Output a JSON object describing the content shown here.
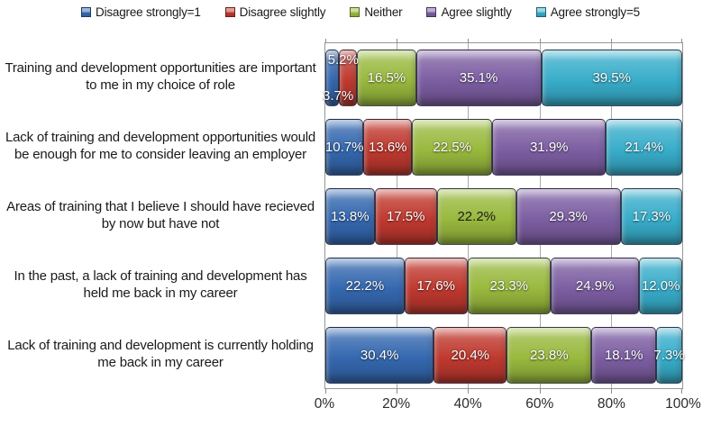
{
  "chart_data": {
    "type": "bar",
    "subtype": "horizontal-stacked",
    "title": "",
    "categories": [
      "Training and development opportunities are important to me in my choice of role",
      "Lack of training and development opportunities would be enough for me to consider leaving an employer",
      "Areas of training that I believe I should have recieved by now but have not",
      "In the past, a lack of training and development has held me back in my career",
      "Lack of training and development is currently holding me back in my career"
    ],
    "series": [
      {
        "name": "Disagree strongly=1",
        "color": "#3568AF",
        "values": [
          3.7,
          10.7,
          13.8,
          22.2,
          30.4
        ],
        "labels": [
          "3.7%",
          "10.7%",
          "13.8%",
          "22.2%",
          "30.4%"
        ]
      },
      {
        "name": "Disagree slightly",
        "color": "#BF392F",
        "values": [
          5.2,
          13.6,
          17.5,
          17.6,
          20.4
        ],
        "labels": [
          "5.2%",
          "13.6%",
          "17.5%",
          "17.6%",
          "20.4%"
        ]
      },
      {
        "name": "Neither",
        "color": "#99B93E",
        "values": [
          16.5,
          22.5,
          22.2,
          23.3,
          23.8
        ],
        "labels": [
          "16.5%",
          "22.5%",
          "22.2%",
          "23.3%",
          "23.8%"
        ]
      },
      {
        "name": "Agree slightly",
        "color": "#7C5EA2",
        "values": [
          35.1,
          31.9,
          29.3,
          24.9,
          18.1
        ],
        "labels": [
          "35.1%",
          "31.9%",
          "29.3%",
          "24.9%",
          "18.1%"
        ]
      },
      {
        "name": "Agree strongly=5",
        "color": "#38ADCA",
        "values": [
          39.5,
          21.4,
          17.3,
          12.0,
          7.3
        ],
        "labels": [
          "39.5%",
          "21.4%",
          "17.3%",
          "12.0%",
          "7.3%"
        ]
      }
    ],
    "x_ticks": [
      "0%",
      "20%",
      "40%",
      "60%",
      "80%",
      "100%"
    ],
    "xlim": [
      0,
      100
    ],
    "grid": true,
    "legend_position": "top",
    "label_overrides": [
      {
        "series": 0,
        "category": 0,
        "placement": "bottom-left"
      },
      {
        "series": 1,
        "category": 0,
        "placement": "top-left"
      },
      {
        "series": 2,
        "category": 2,
        "color": "dark"
      }
    ]
  },
  "colors": {
    "frame": "#979797",
    "gridline": "#ababab",
    "text": "#1a1a1a",
    "value_label": "#ffffff"
  }
}
